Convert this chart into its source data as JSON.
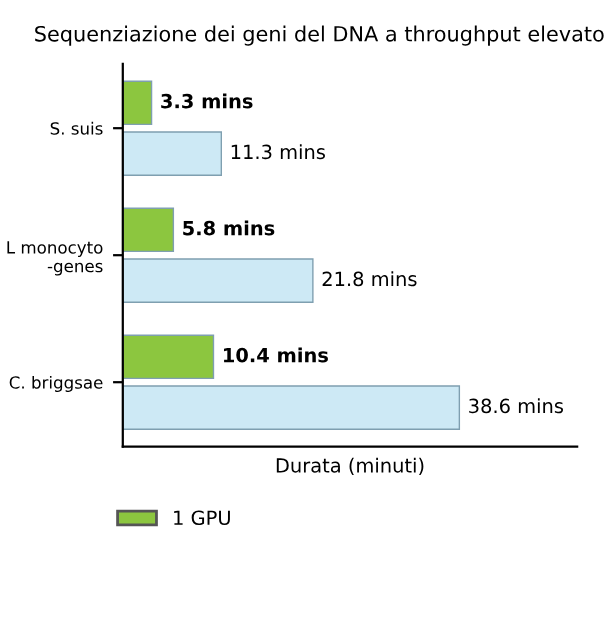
{
  "chart_data": {
    "type": "bar",
    "orientation": "horizontal",
    "title": "Sequenziazione dei geni del DNA a throughput elevato",
    "xlabel": "Durata (minuti)",
    "categories": [
      "S. suis",
      "L monocyto\n-genes",
      "C. briggsae"
    ],
    "series": [
      {
        "name": "1 GPU",
        "color": "#8cc63f",
        "values": [
          3.3,
          5.8,
          10.4
        ],
        "value_labels": [
          "3.3 mins",
          "5.8 mins",
          "10.4 mins"
        ]
      },
      {
        "color": "#cde9f5",
        "values": [
          11.3,
          21.8,
          38.6
        ],
        "value_labels": [
          "11.3 mins",
          "21.8 mins",
          "38.6 mins"
        ]
      }
    ],
    "legend": "bottom",
    "grid": false
  }
}
